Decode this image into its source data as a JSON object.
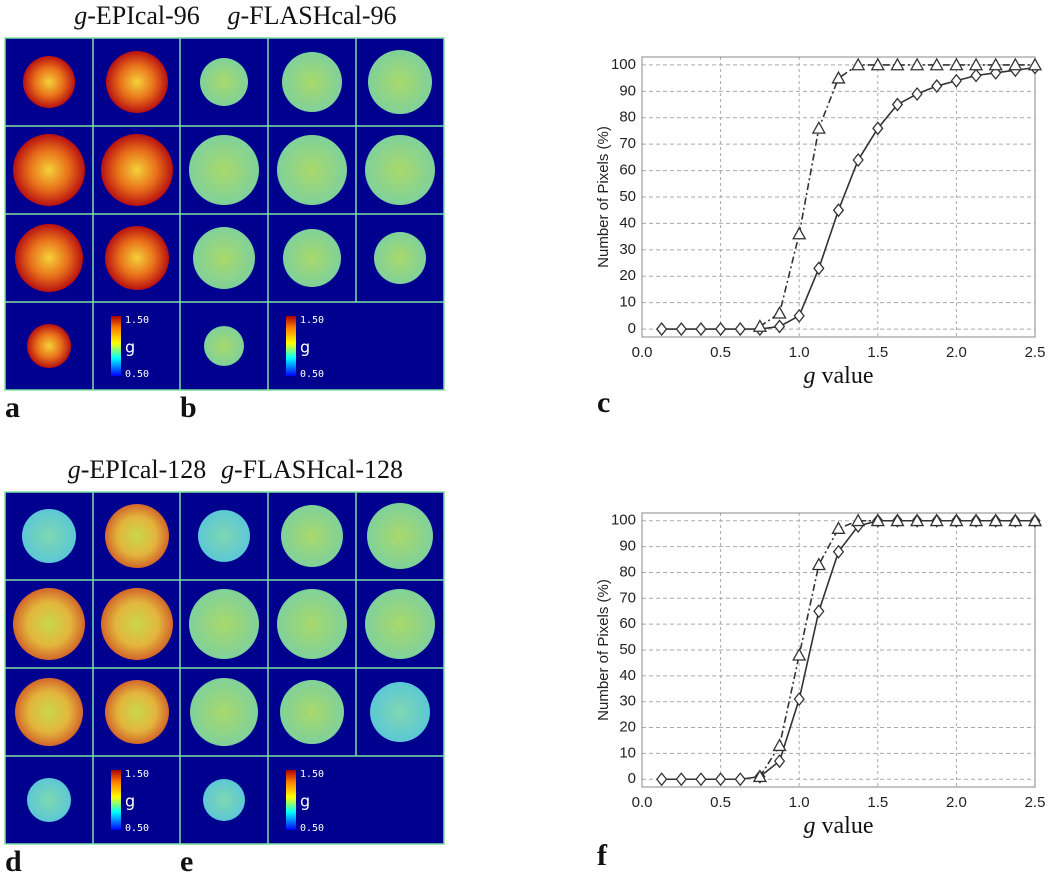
{
  "panels": [
    {
      "title_var": "g",
      "title": "-EPIcal-96",
      "letter": "a",
      "colorbar": {
        "max": "1.50",
        "label": "g",
        "min": "0.50"
      }
    },
    {
      "title_var": "g",
      "title": "-FLASHcal-96",
      "letter": "b",
      "colorbar": {
        "max": "1.50",
        "label": "g",
        "min": "0.50"
      }
    },
    {
      "title_var": "g",
      "title": "-EPIcal-128",
      "letter": "d",
      "colorbar": {
        "max": "1.50",
        "label": "g",
        "min": "0.50"
      }
    },
    {
      "title_var": "g",
      "title": "-FLASHcal-128",
      "letter": "e",
      "colorbar": {
        "max": "1.50",
        "label": "g",
        "min": "0.50"
      }
    }
  ],
  "chart_data": [
    {
      "type": "line",
      "letter": "c",
      "ylabel": "Number of Pixels (%)",
      "xlabel_var": "g",
      "xlabel": " value",
      "x": [
        0.125,
        0.25,
        0.375,
        0.5,
        0.625,
        0.75,
        0.875,
        1.0,
        1.125,
        1.25,
        1.375,
        1.5,
        1.625,
        1.75,
        1.875,
        2.0,
        2.125,
        2.25,
        2.375,
        2.5
      ],
      "xlim": [
        0,
        2.5
      ],
      "ylim": [
        -3,
        103
      ],
      "xticks": [
        {
          "value": 0,
          "label": "0.0"
        },
        0.5,
        {
          "value": 1,
          "label": "1.0"
        },
        1.5,
        {
          "value": 2,
          "label": "2.0"
        },
        2.5
      ],
      "yticks": [
        0,
        10,
        20,
        30,
        40,
        50,
        60,
        70,
        80,
        90,
        100
      ],
      "grid": true,
      "series": [
        {
          "marker": "diamond",
          "line": "solid",
          "color": "#333333",
          "values": [
            0,
            0,
            0,
            0,
            0,
            0,
            1,
            5,
            23,
            45,
            64,
            76,
            85,
            89,
            92,
            94,
            96,
            97,
            98,
            99
          ]
        },
        {
          "marker": "triangle",
          "line": "dashdot",
          "color": "#333333",
          "values": [
            null,
            null,
            null,
            null,
            null,
            1,
            6,
            36,
            76,
            95,
            100,
            100,
            100,
            100,
            100,
            100,
            100,
            100,
            100,
            100
          ]
        }
      ]
    },
    {
      "type": "line",
      "letter": "f",
      "ylabel": "Number of Pixels (%)",
      "xlabel_var": "g",
      "xlabel": " value",
      "x": [
        0.125,
        0.25,
        0.375,
        0.5,
        0.625,
        0.75,
        0.875,
        1.0,
        1.125,
        1.25,
        1.375,
        1.5,
        1.625,
        1.75,
        1.875,
        2.0,
        2.125,
        2.25,
        2.375,
        2.5
      ],
      "xlim": [
        0,
        2.5
      ],
      "ylim": [
        -3,
        103
      ],
      "xticks": [
        {
          "value": 0,
          "label": "0.0"
        },
        0.5,
        {
          "value": 1,
          "label": "1.0"
        },
        1.5,
        {
          "value": 2,
          "label": "2.0"
        },
        2.5
      ],
      "yticks": [
        0,
        10,
        20,
        30,
        40,
        50,
        60,
        70,
        80,
        90,
        100
      ],
      "grid": true,
      "series": [
        {
          "marker": "diamond",
          "line": "solid",
          "color": "#333333",
          "values": [
            0,
            0,
            0,
            0,
            0,
            1,
            7,
            31,
            65,
            88,
            98,
            100,
            100,
            100,
            100,
            100,
            100,
            100,
            100,
            100
          ]
        },
        {
          "marker": "triangle",
          "line": "dashdot",
          "color": "#333333",
          "values": [
            null,
            null,
            null,
            null,
            null,
            1,
            13,
            48,
            83,
            97,
            100,
            100,
            100,
            100,
            100,
            100,
            100,
            100,
            100,
            100
          ]
        }
      ]
    }
  ]
}
